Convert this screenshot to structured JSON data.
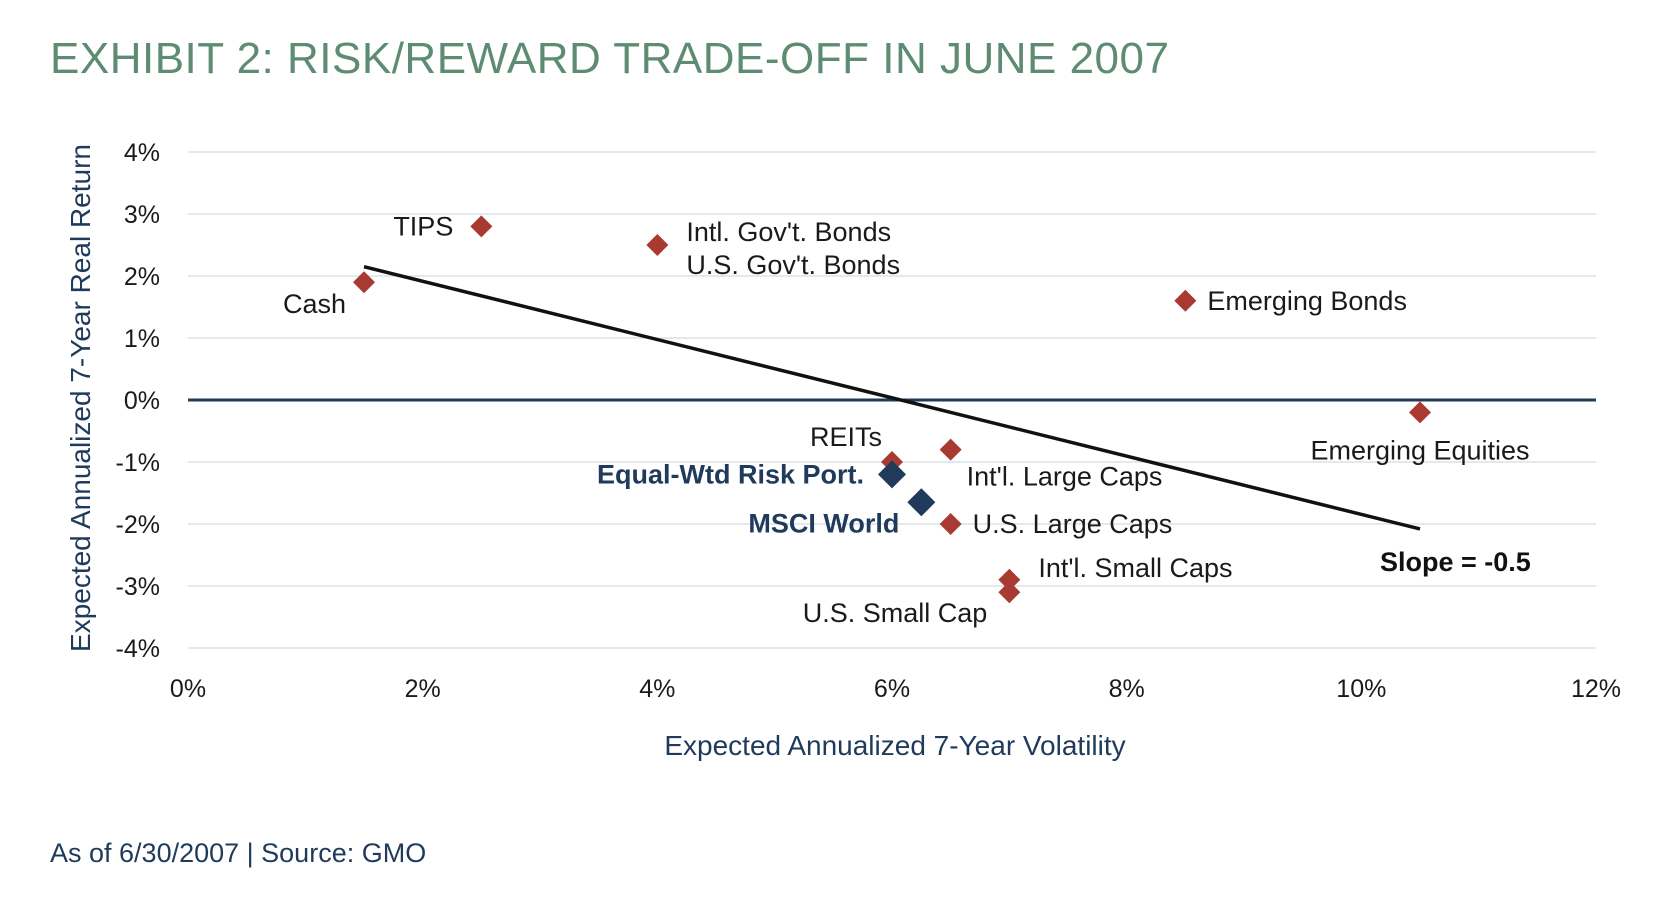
{
  "title": "EXHIBIT 2: RISK/REWARD TRADE-OFF IN JUNE 2007",
  "source": "As of 6/30/2007 | Source: GMO",
  "colors": {
    "asset": "#a83a32",
    "highlight": "#1f3a5a",
    "grid": "#d9e3ea",
    "zero": "#1f3a5a",
    "title": "#5e8c73"
  },
  "chart_data": {
    "type": "scatter",
    "xlabel": "Expected Annualized 7-Year Volatility",
    "ylabel": "Expected Annualized 7-Year Real Return",
    "xlim": [
      0,
      12
    ],
    "ylim": [
      -4,
      4
    ],
    "xticks": [
      "0%",
      "2%",
      "4%",
      "6%",
      "8%",
      "10%",
      "12%"
    ],
    "yticks": [
      "4%",
      "3%",
      "2%",
      "1%",
      "0%",
      "-1%",
      "-2%",
      "-3%",
      "-4%"
    ],
    "grid": "horizontal",
    "points": [
      {
        "label": "Cash",
        "x": 1.5,
        "y": 1.9,
        "highlight": false,
        "anchor": "bottom-left"
      },
      {
        "label": "TIPS",
        "x": 2.5,
        "y": 2.8,
        "highlight": false,
        "anchor": "left"
      },
      {
        "label": "Intl. Gov't. Bonds",
        "x": 4.0,
        "y": 2.5,
        "highlight": false,
        "anchor": "right-up"
      },
      {
        "label": "U.S. Gov't. Bonds",
        "x": 4.0,
        "y": 2.5,
        "highlight": false,
        "anchor": "right-down"
      },
      {
        "label": "Emerging Bonds",
        "x": 8.5,
        "y": 1.6,
        "highlight": false,
        "anchor": "right"
      },
      {
        "label": "Emerging Equities",
        "x": 10.5,
        "y": -0.2,
        "highlight": false,
        "anchor": "below"
      },
      {
        "label": "REITs",
        "x": 6.0,
        "y": -1.0,
        "highlight": false,
        "anchor": "left-up"
      },
      {
        "label": "Int'l. Large Caps",
        "x": 6.5,
        "y": -0.8,
        "highlight": false,
        "anchor": "right-down"
      },
      {
        "label": "U.S. Large Caps",
        "x": 6.5,
        "y": -2.0,
        "highlight": false,
        "anchor": "right"
      },
      {
        "label": "Int'l. Small Caps",
        "x": 7.0,
        "y": -2.9,
        "highlight": false,
        "anchor": "right-up"
      },
      {
        "label": "U.S. Small Cap",
        "x": 7.0,
        "y": -3.1,
        "highlight": false,
        "anchor": "left-down"
      },
      {
        "label": "Equal-Wtd Risk Port.",
        "x": 6.0,
        "y": -1.2,
        "highlight": true,
        "anchor": "left"
      },
      {
        "label": "MSCI World",
        "x": 6.25,
        "y": -1.65,
        "highlight": true,
        "anchor": "left-down"
      }
    ],
    "trendline": {
      "x": [
        1.5,
        10.5
      ],
      "y": [
        2.15,
        -2.08
      ]
    },
    "annotation": "Slope = -0.5"
  }
}
